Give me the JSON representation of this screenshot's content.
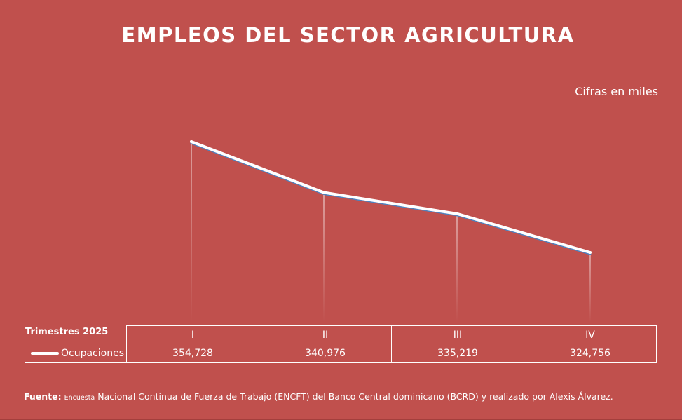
{
  "title": "EMPLEOS DEL SECTOR AGRICULTURA",
  "units_note": "Cifras en miles",
  "chart_data": {
    "type": "line",
    "title": "EMPLEOS DEL SECTOR AGRICULTURA",
    "xlabel": "Trimestres 2025",
    "categories": [
      "I",
      "II",
      "III",
      "IV"
    ],
    "series": [
      {
        "name": "Ocupaciones",
        "values": [
          354728,
          340976,
          335219,
          324756
        ]
      }
    ],
    "value_labels": [
      "354,728",
      "340,976",
      "335,219",
      "324,756"
    ],
    "colors": {
      "line": "#ffffff",
      "shadow": "#4f81bd",
      "background": "#c0504d"
    }
  },
  "source": {
    "label": "Fuente:",
    "small": "Encuesta",
    "text": "Nacional Continua de Fuerza de Trabajo (ENCFT) del Banco Central dominicano (BCRD) y realizado por Alexis  Álvarez."
  }
}
